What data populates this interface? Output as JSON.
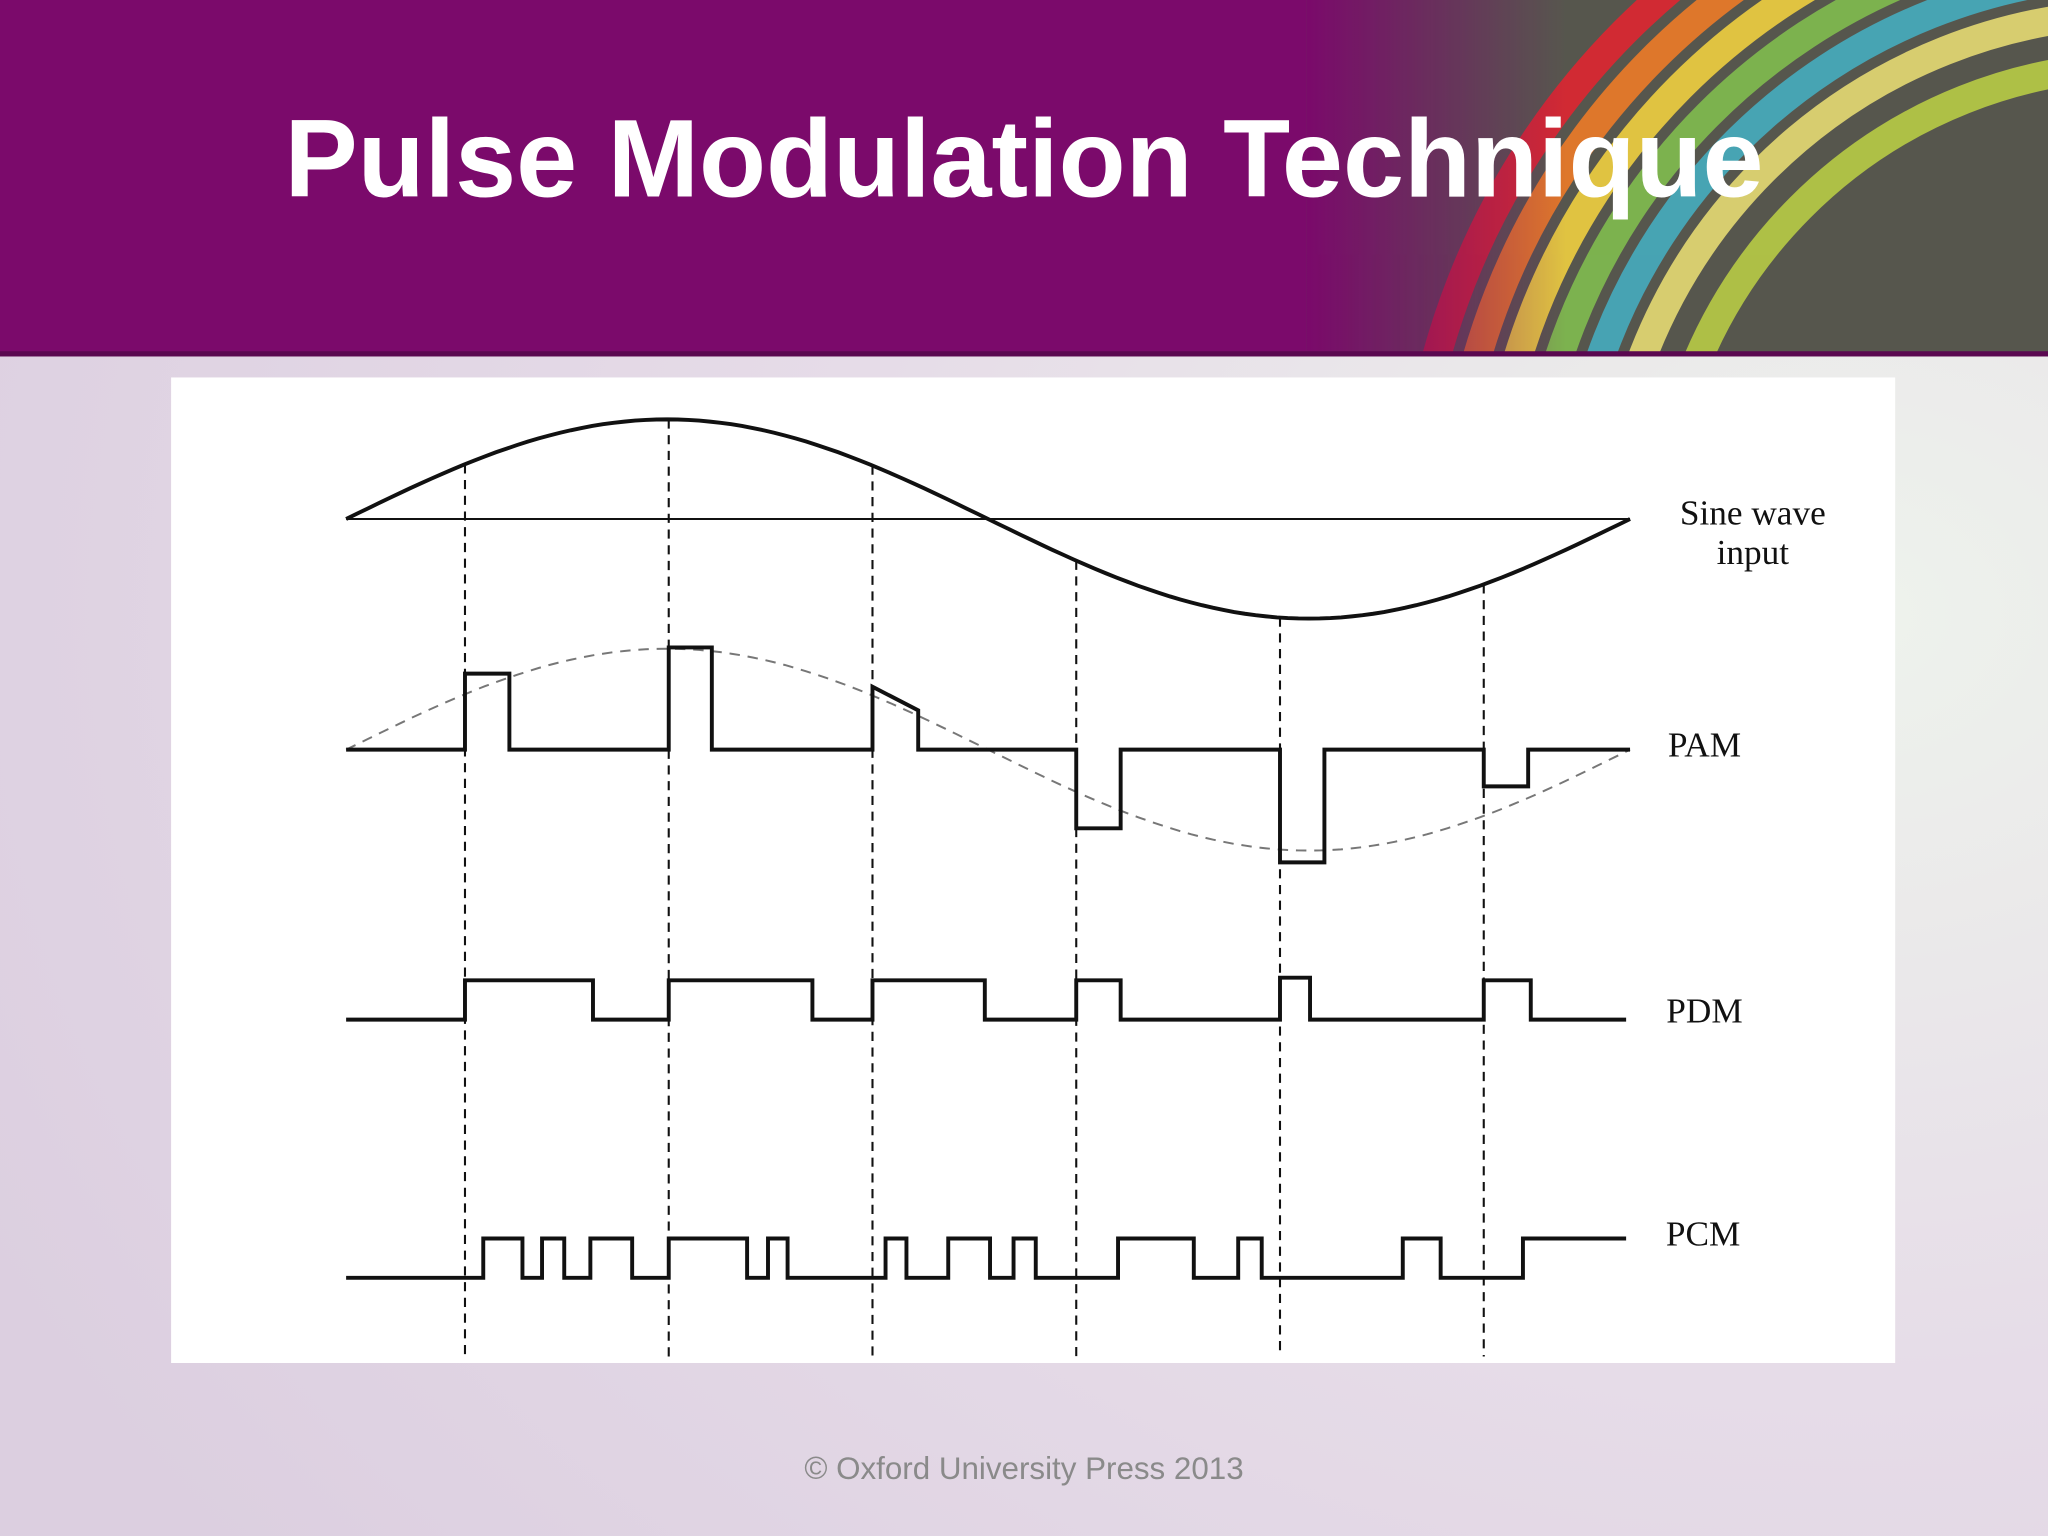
{
  "header": {
    "title": "Pulse Modulation Technique"
  },
  "diagram": {
    "labels": [
      {
        "lines": [
          "Sine wave",
          "input"
        ]
      },
      {
        "lines": [
          "PAM"
        ]
      },
      {
        "lines": [
          "PDM"
        ]
      },
      {
        "lines": [
          "PCM"
        ]
      }
    ]
  },
  "footer": {
    "text": "© Oxford University Press 2013"
  }
}
